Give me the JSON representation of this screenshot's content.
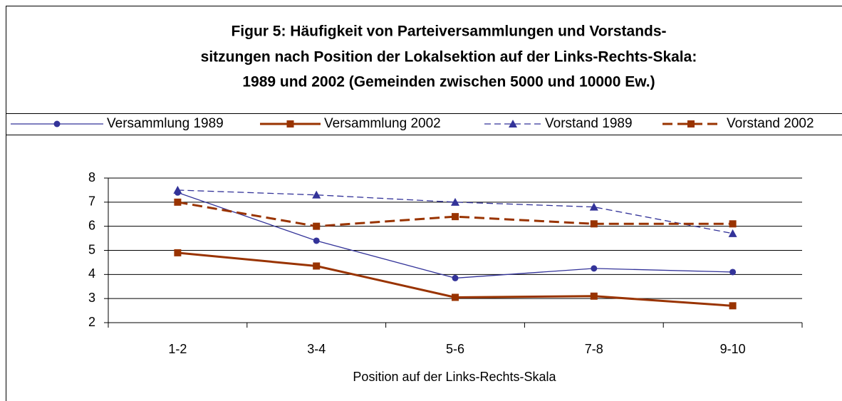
{
  "chart_data": {
    "type": "line",
    "title": [
      "Figur 5: Häufigkeit von Parteiversammlungen und Vorstands-",
      "sitzungen nach Position der Lokalsektion auf der Links-Rechts-Skala:",
      "1989 und 2002  (Gemeinden zwischen 5000 und 10000 Ew.)"
    ],
    "x_label": "Position auf der Links-Rechts-Skala",
    "categories": [
      "1-2",
      "3-4",
      "5-6",
      "7-8",
      "9-10"
    ],
    "series": [
      {
        "name": "Versammlung 1989",
        "color": "#333399",
        "marker": "circle",
        "dashed": false,
        "width": 1.3,
        "values": [
          7.4,
          5.4,
          3.85,
          4.25,
          4.1
        ]
      },
      {
        "name": "Versammlung 2002",
        "color": "#993300",
        "marker": "square",
        "dashed": false,
        "width": 3,
        "values": [
          4.9,
          4.35,
          3.05,
          3.1,
          2.7
        ]
      },
      {
        "name": "Vorstand 1989",
        "color": "#333399",
        "marker": "triangle",
        "dashed": true,
        "width": 1.3,
        "values": [
          7.5,
          7.3,
          7.0,
          6.8,
          5.7
        ]
      },
      {
        "name": "Vorstand 2002",
        "color": "#993300",
        "marker": "square",
        "dashed": true,
        "width": 3,
        "values": [
          7.0,
          6.0,
          6.4,
          6.1,
          6.1
        ]
      }
    ],
    "ylim": [
      2,
      8
    ],
    "yticks": [
      2,
      3,
      4,
      5,
      6,
      7,
      8
    ],
    "grid": true,
    "legend": "top"
  }
}
